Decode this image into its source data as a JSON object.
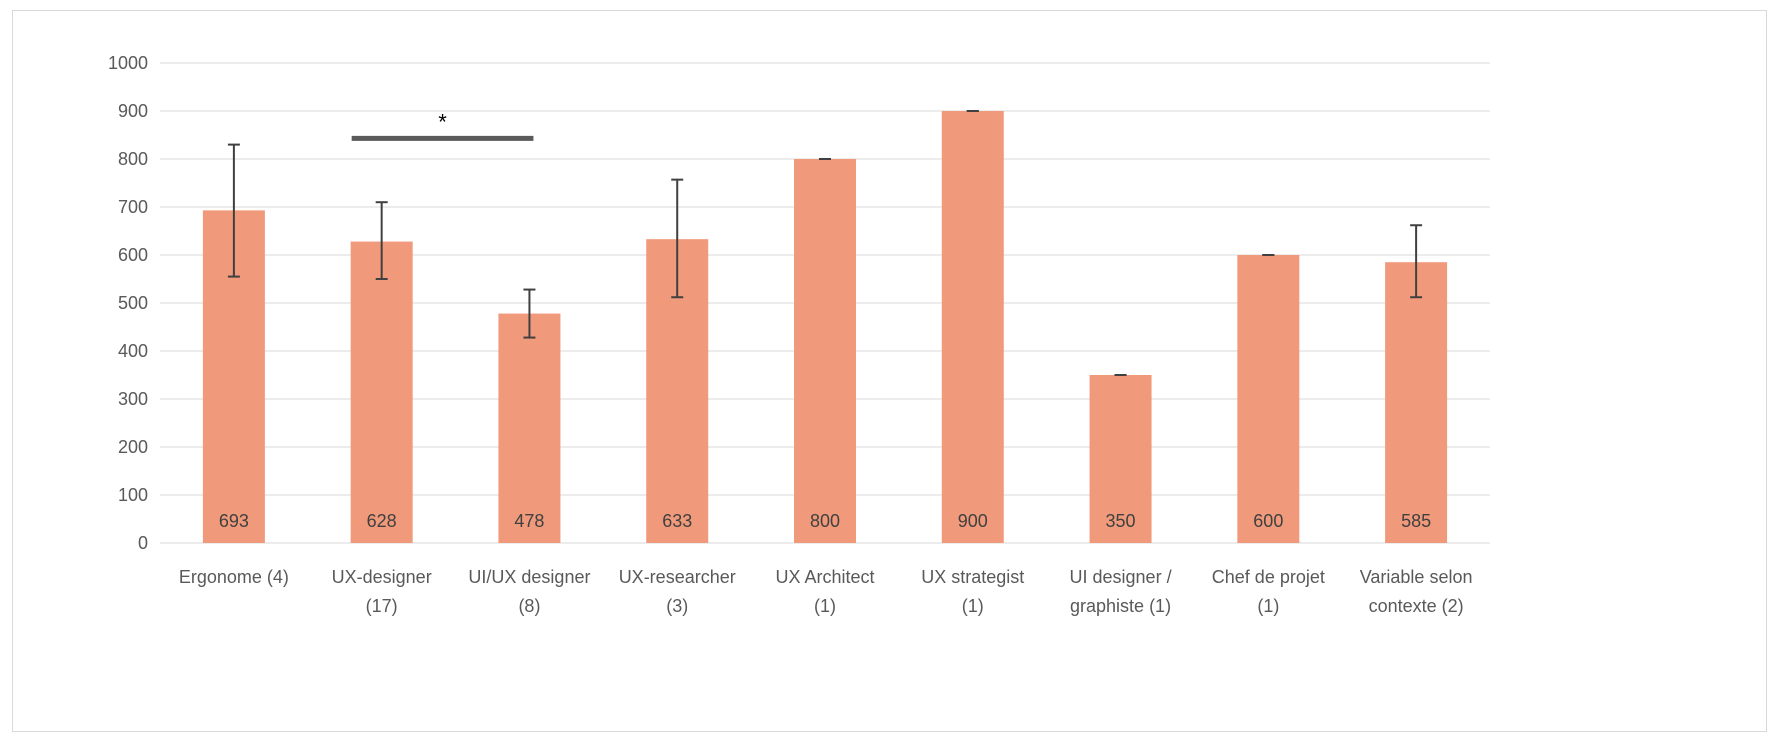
{
  "chart_data": {
    "type": "bar",
    "categories": [
      [
        "Ergonome (4)"
      ],
      [
        "UX-designer",
        "(17)"
      ],
      [
        "UI/UX designer",
        "(8)"
      ],
      [
        "UX-researcher",
        "(3)"
      ],
      [
        "UX Architect",
        "(1)"
      ],
      [
        "UX strategist",
        "(1)"
      ],
      [
        "UI designer /",
        "graphiste (1)"
      ],
      [
        "Chef de projet",
        "(1)"
      ],
      [
        "Variable selon",
        "contexte (2)"
      ]
    ],
    "values": [
      693,
      628,
      478,
      633,
      800,
      900,
      350,
      600,
      585
    ],
    "error_low": [
      555,
      550,
      428,
      512,
      800,
      900,
      350,
      600,
      512
    ],
    "error_high": [
      830,
      710,
      528,
      757,
      800,
      900,
      350,
      600,
      662
    ],
    "ylim": [
      0,
      1000
    ],
    "yticks": [
      0,
      100,
      200,
      300,
      400,
      500,
      600,
      700,
      800,
      900,
      1000
    ],
    "grid": true,
    "legend": "none",
    "bar_color": "#f09a7b",
    "error_color": "#404040",
    "significance": {
      "label": "*",
      "from_category": 1,
      "to_category": 2,
      "y": 843
    },
    "title": "",
    "xlabel": "",
    "ylabel": ""
  }
}
